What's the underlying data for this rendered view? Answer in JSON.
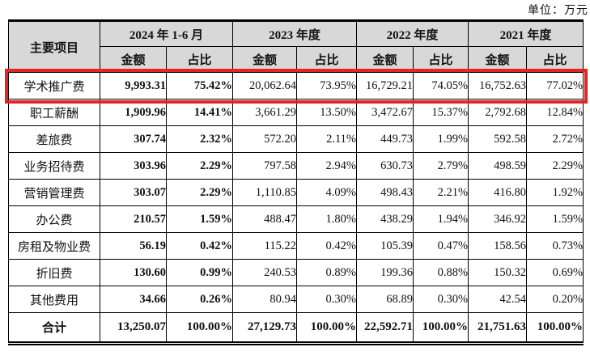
{
  "unit_label": "单位：万元",
  "colors": {
    "page_bg": "#ffffff",
    "header_bg": "#d8d8d8",
    "border": "#000000",
    "highlight_red": "#e02626"
  },
  "table": {
    "item_header": "主要项目",
    "periods": [
      "2024 年 1-6 月",
      "2023 年度",
      "2022 年度",
      "2021 年度"
    ],
    "subheaders": {
      "amount": "金额",
      "ratio": "占比"
    },
    "rows": [
      {
        "item": "学术推广费",
        "values": [
          "9,993.31",
          "75.42%",
          "20,062.64",
          "73.95%",
          "16,729.21",
          "74.05%",
          "16,752.63",
          "77.02%"
        ],
        "highlight": true
      },
      {
        "item": "职工薪酬",
        "values": [
          "1,909.96",
          "14.41%",
          "3,661.29",
          "13.50%",
          "3,472.67",
          "15.37%",
          "2,792.68",
          "12.84%"
        ]
      },
      {
        "item": "差旅费",
        "values": [
          "307.74",
          "2.32%",
          "572.20",
          "2.11%",
          "449.73",
          "1.99%",
          "592.58",
          "2.72%"
        ]
      },
      {
        "item": "业务招待费",
        "values": [
          "303.96",
          "2.29%",
          "797.58",
          "2.94%",
          "630.73",
          "2.79%",
          "498.59",
          "2.29%"
        ]
      },
      {
        "item": "营销管理费",
        "values": [
          "303.07",
          "2.29%",
          "1,110.85",
          "4.09%",
          "498.43",
          "2.21%",
          "416.80",
          "1.92%"
        ]
      },
      {
        "item": "办公费",
        "values": [
          "210.57",
          "1.59%",
          "488.47",
          "1.80%",
          "438.29",
          "1.94%",
          "346.92",
          "1.59%"
        ]
      },
      {
        "item": "房租及物业费",
        "values": [
          "56.19",
          "0.42%",
          "115.22",
          "0.42%",
          "105.39",
          "0.47%",
          "158.56",
          "0.73%"
        ]
      },
      {
        "item": "折旧费",
        "values": [
          "130.60",
          "0.99%",
          "240.53",
          "0.89%",
          "199.36",
          "0.88%",
          "150.32",
          "0.69%"
        ]
      },
      {
        "item": "其他费用",
        "values": [
          "34.66",
          "0.26%",
          "80.94",
          "0.30%",
          "68.89",
          "0.30%",
          "42.54",
          "0.20%"
        ]
      },
      {
        "item": "合计",
        "values": [
          "13,250.07",
          "100.00%",
          "27,129.73",
          "100.00%",
          "22,592.71",
          "100.00%",
          "21,751.63",
          "100.00%"
        ],
        "total": true
      }
    ]
  }
}
